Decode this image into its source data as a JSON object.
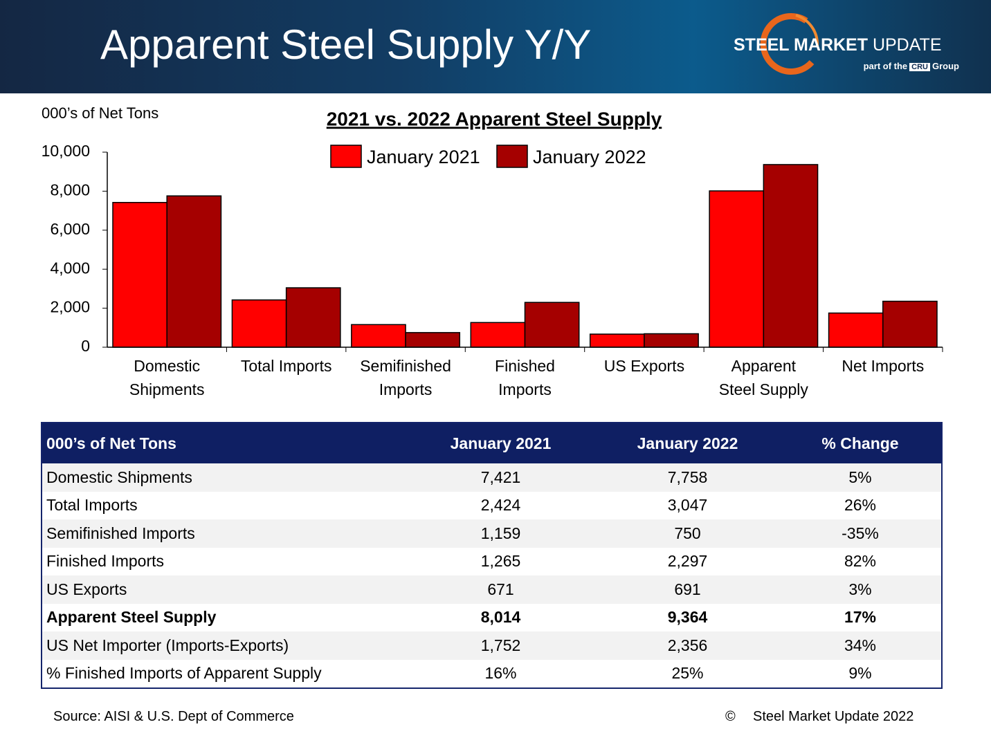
{
  "header": {
    "title": "Apparent Steel Supply Y/Y",
    "brand_bold": "STEEL MARKET",
    "brand_light": "UPDATE",
    "tagline_pre": "part of the",
    "tagline_logo": "CRU",
    "tagline_post": "Group"
  },
  "chart_data": {
    "type": "bar",
    "title": "2021 vs. 2022 Apparent Steel Supply",
    "y_label": "000’s of Net Tons",
    "categories": [
      "Domestic\nShipments",
      "Total Imports",
      "Semifinished\nImports",
      "Finished\nImports",
      "US Exports",
      "Apparent\nSteel Supply",
      "Net Imports"
    ],
    "series": [
      {
        "name": "January 2021",
        "color": "#ff0000",
        "values": [
          7421,
          2424,
          1159,
          1265,
          671,
          8014,
          1752
        ]
      },
      {
        "name": "January 2022",
        "color": "#a50000",
        "values": [
          7758,
          3047,
          750,
          2297,
          691,
          9364,
          2356
        ]
      }
    ],
    "ylim": [
      0,
      10000
    ],
    "yticks": [
      0,
      {
        "value": 2000,
        "label": "2,000"
      },
      {
        "value": 4000,
        "label": "4,000"
      },
      {
        "value": 6000,
        "label": "6,000"
      },
      {
        "value": 8000,
        "label": "8,000"
      },
      {
        "value": 10000,
        "label": "10,000"
      }
    ],
    "grid": false,
    "legend": "top"
  },
  "table": {
    "header": [
      "000’s of Net Tons",
      "January 2021",
      "January 2022",
      "% Change"
    ],
    "rows": [
      [
        "Domestic Shipments",
        "7,421",
        "7,758",
        "5%"
      ],
      [
        "Total Imports",
        "2,424",
        "3,047",
        "26%"
      ],
      [
        "Semifinished Imports",
        "1,159",
        "750",
        "-35%"
      ],
      [
        "Finished Imports",
        "1,265",
        "2,297",
        "82%"
      ],
      [
        "US Exports",
        "671",
        "691",
        "3%"
      ],
      [
        "Apparent Steel Supply",
        "8,014",
        "9,364",
        "17%"
      ],
      [
        "US Net Importer (Imports-Exports)",
        "1,752",
        "2,356",
        "34%"
      ],
      [
        "% Finished Imports of Apparent Supply",
        "16%",
        "25%",
        "9%"
      ]
    ],
    "bold_rows": [
      5
    ]
  },
  "footer": {
    "source": "Source:  AISI & U.S. Dept of Commerce",
    "copyright_symbol": "©",
    "copyright": "Steel Market Update 2022"
  }
}
